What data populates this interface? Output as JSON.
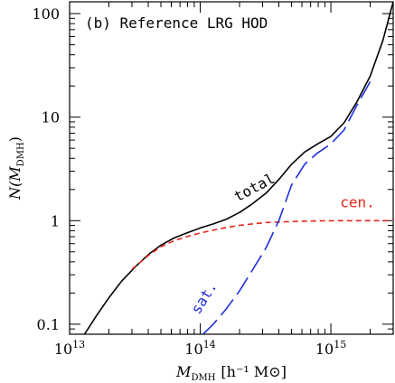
{
  "chart_data": {
    "type": "line",
    "title": "(b) Reference LRG HOD",
    "xlabel": {
      "main": "M",
      "sub": "DMH",
      "units": "[h⁻¹ M⊙]"
    },
    "ylabel": {
      "main": "N(M",
      "sub": "DMH",
      "close": ")"
    },
    "xscale": "log",
    "yscale": "log",
    "xlim": [
      10000000000000.0,
      3000000000000000.0
    ],
    "ylim": [
      0.08,
      130
    ],
    "x_ticks": [
      {
        "value": 10000000000000.0,
        "base": "10",
        "exp": "13"
      },
      {
        "value": 100000000000000.0,
        "base": "10",
        "exp": "14"
      },
      {
        "value": 1000000000000000.0,
        "base": "10",
        "exp": "15"
      }
    ],
    "y_ticks": [
      {
        "value": 0.1,
        "label": "0.1"
      },
      {
        "value": 1,
        "label": "1"
      },
      {
        "value": 10,
        "label": "10"
      },
      {
        "value": 100,
        "label": "100"
      }
    ],
    "grid": false,
    "legend": "none",
    "series": [
      {
        "key": "total",
        "name": "total",
        "color": "#000000",
        "dash": "solid",
        "x": [
          13000000000000.0,
          16000000000000.0,
          20000000000000.0,
          25000000000000.0,
          32000000000000.0,
          40000000000000.0,
          50000000000000.0,
          63000000000000.0,
          79000000000000.0,
          100000000000000.0,
          126000000000000.0,
          158000000000000.0,
          200000000000000.0,
          250000000000000.0,
          320000000000000.0,
          400000000000000.0,
          500000000000000.0,
          630000000000000.0,
          790000000000000.0,
          1000000000000000.0,
          1260000000000000.0,
          1580000000000000.0,
          2000000000000000.0,
          2500000000000000.0,
          3000000000000000.0
        ],
        "y": [
          0.08,
          0.12,
          0.18,
          0.26,
          0.36,
          0.47,
          0.58,
          0.68,
          0.76,
          0.85,
          0.93,
          1.03,
          1.2,
          1.45,
          1.85,
          2.5,
          3.5,
          4.6,
          5.5,
          6.5,
          8.8,
          14,
          25,
          55,
          130
        ]
      },
      {
        "key": "cen",
        "name": "cen.",
        "color": "#e8261c",
        "dash": "6,4",
        "x": [
          30000000000000.0,
          40000000000000.0,
          50000000000000.0,
          63000000000000.0,
          79000000000000.0,
          100000000000000.0,
          126000000000000.0,
          158000000000000.0,
          200000000000000.0,
          250000000000000.0,
          320000000000000.0,
          400000000000000.0,
          500000000000000.0,
          630000000000000.0,
          790000000000000.0,
          1000000000000000.0,
          1260000000000000.0,
          1580000000000000.0,
          2000000000000000.0,
          2500000000000000.0,
          3000000000000000.0
        ],
        "y": [
          0.34,
          0.46,
          0.56,
          0.64,
          0.7,
          0.76,
          0.81,
          0.86,
          0.9,
          0.93,
          0.96,
          0.97,
          0.98,
          0.99,
          0.995,
          0.998,
          1.0,
          1.0,
          1.0,
          1.0,
          1.0
        ]
      },
      {
        "key": "sat",
        "name": "sat.",
        "color": "#1f2fd8",
        "dash": "22,7",
        "x": [
          105000000000000.0,
          126000000000000.0,
          158000000000000.0,
          200000000000000.0,
          250000000000000.0,
          320000000000000.0,
          400000000000000.0,
          500000000000000.0,
          630000000000000.0,
          790000000000000.0,
          1000000000000000.0,
          1260000000000000.0,
          1580000000000000.0,
          2000000000000000.0
        ],
        "y": [
          0.08,
          0.1,
          0.14,
          0.21,
          0.33,
          0.55,
          1.0,
          2.2,
          3.5,
          4.5,
          5.5,
          7.5,
          13,
          22
        ]
      }
    ],
    "series_labels": {
      "total": {
        "text": "total",
        "x": 270000000000000.0,
        "y": 1.9
      },
      "cen": {
        "text": "cen.",
        "x": 1600000000000000.0,
        "y": 1.35
      },
      "sat": {
        "text": "sat.",
        "x": 115000000000000.0,
        "y": 0.17
      }
    }
  }
}
